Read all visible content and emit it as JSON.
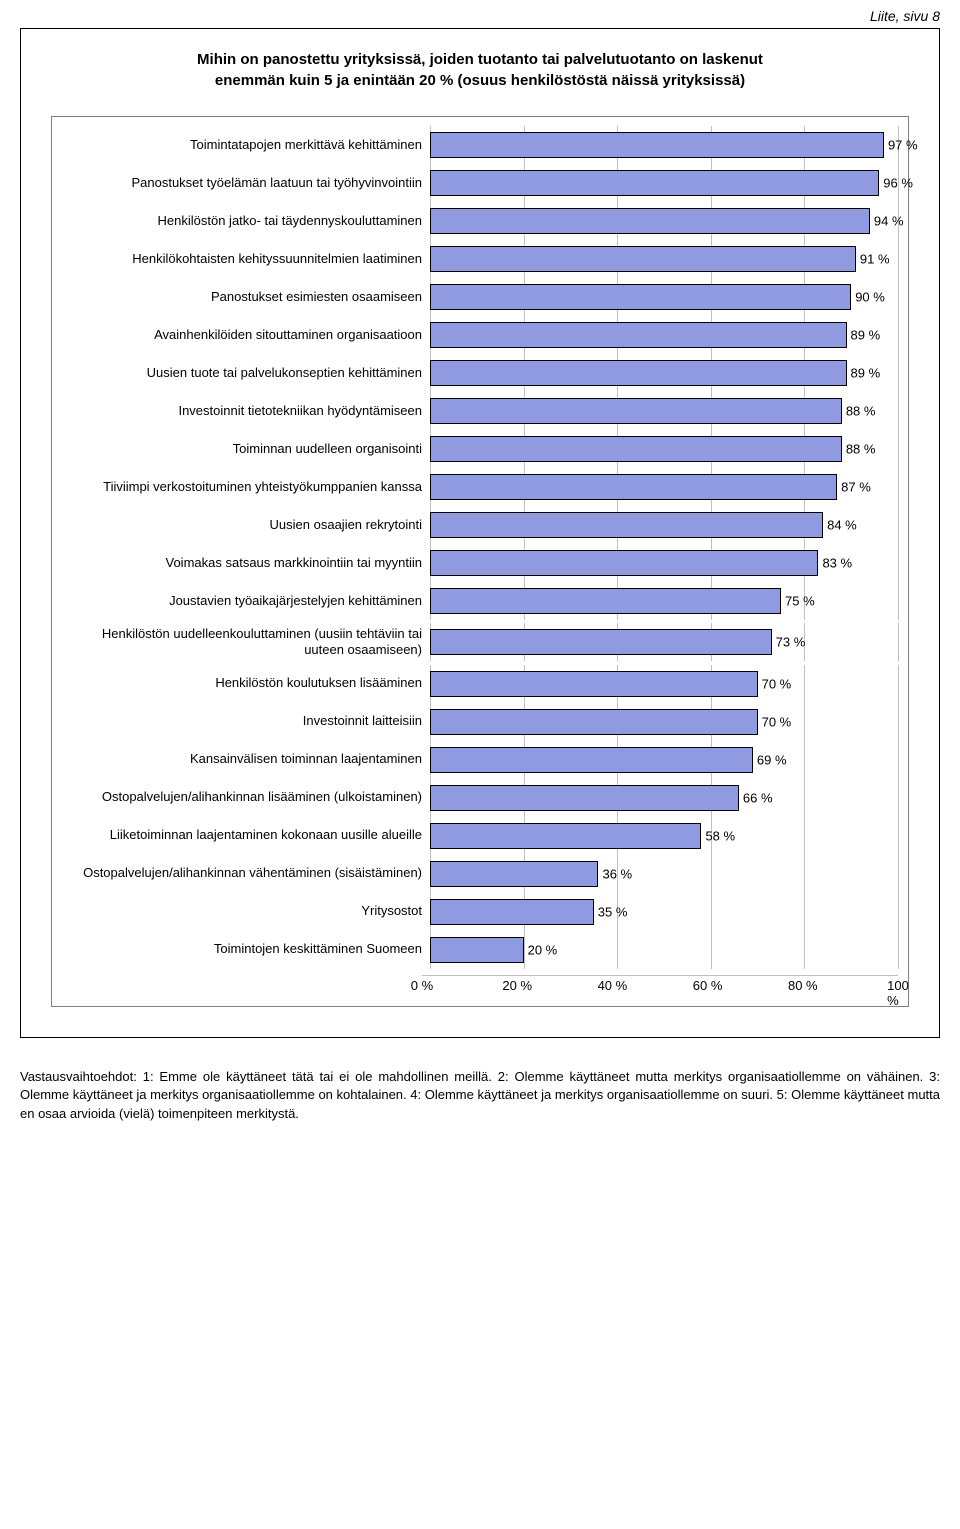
{
  "header": {
    "page_label": "Liite, sivu 8"
  },
  "chart": {
    "type": "bar",
    "title_line1": "Mihin on panostettu yrityksissä, joiden tuotanto tai palvelutuotanto on laskenut",
    "title_line2": "enemmän kuin 5 ja enintään 20 % (osuus henkilöstöstä näissä yrityksissä)",
    "bar_color": "#8f9ae0",
    "bar_border_color": "#000000",
    "grid_color": "#c0c0c0",
    "background_color": "#ffffff",
    "value_suffix": " %",
    "x_ticks": [
      {
        "pos": 0,
        "label": "0 %"
      },
      {
        "pos": 20,
        "label": "20 %"
      },
      {
        "pos": 40,
        "label": "40 %"
      },
      {
        "pos": 60,
        "label": "60 %"
      },
      {
        "pos": 80,
        "label": "80 %"
      },
      {
        "pos": 100,
        "label": "100 %"
      }
    ],
    "xlim": 100,
    "items": [
      {
        "label": "Toimintatapojen merkittävä kehittäminen",
        "value": 97
      },
      {
        "label": "Panostukset työelämän laatuun tai työhyvinvointiin",
        "value": 96
      },
      {
        "label": "Henkilöstön jatko- tai täydennyskouluttaminen",
        "value": 94
      },
      {
        "label": "Henkilökohtaisten kehityssuunnitelmien laatiminen",
        "value": 91
      },
      {
        "label": "Panostukset esimiesten osaamiseen",
        "value": 90
      },
      {
        "label": "Avainhenkilöiden sitouttaminen organisaatioon",
        "value": 89
      },
      {
        "label": "Uusien tuote tai palvelukonseptien kehittäminen",
        "value": 89
      },
      {
        "label": "Investoinnit tietotekniikan hyödyntämiseen",
        "value": 88
      },
      {
        "label": "Toiminnan uudelleen organisointi",
        "value": 88
      },
      {
        "label": "Tiiviimpi verkostoituminen yhteistyökumppanien kanssa",
        "value": 87
      },
      {
        "label": "Uusien osaajien rekrytointi",
        "value": 84
      },
      {
        "label": "Voimakas satsaus markkinointiin tai myyntiin",
        "value": 83
      },
      {
        "label": "Joustavien työaikajärjestelyjen kehittäminen",
        "value": 75
      },
      {
        "label": "Henkilöstön uudelleenkouluttaminen (uusiin tehtäviin tai uuteen osaamiseen)",
        "value": 73
      },
      {
        "label": "Henkilöstön koulutuksen lisääminen",
        "value": 70
      },
      {
        "label": "Investoinnit laitteisiin",
        "value": 70
      },
      {
        "label": "Kansainvälisen toiminnan laajentaminen",
        "value": 69
      },
      {
        "label": "Ostopalvelujen/alihankinnan lisääminen (ulkoistaminen)",
        "value": 66
      },
      {
        "label": "Liiketoiminnan laajentaminen kokonaan uusille alueille",
        "value": 58
      },
      {
        "label": "Ostopalvelujen/alihankinnan vähentäminen (sisäistäminen)",
        "value": 36
      },
      {
        "label": "Yritysostot",
        "value": 35
      },
      {
        "label": "Toimintojen keskittäminen Suomeen",
        "value": 20
      }
    ]
  },
  "footnote": {
    "text": "Vastausvaihtoehdot: 1: Emme ole käyttäneet tätä tai ei ole mahdollinen meillä. 2: Olemme käyttäneet mutta merkitys organisaatiollemme on vähäinen. 3: Olemme käyttäneet ja merkitys organisaatiollemme on kohtalainen. 4: Olemme käyttäneet ja merkitys organisaatiollemme on suuri. 5: Olemme käyttäneet mutta en osaa arvioida (vielä) toimenpiteen merkitystä."
  }
}
